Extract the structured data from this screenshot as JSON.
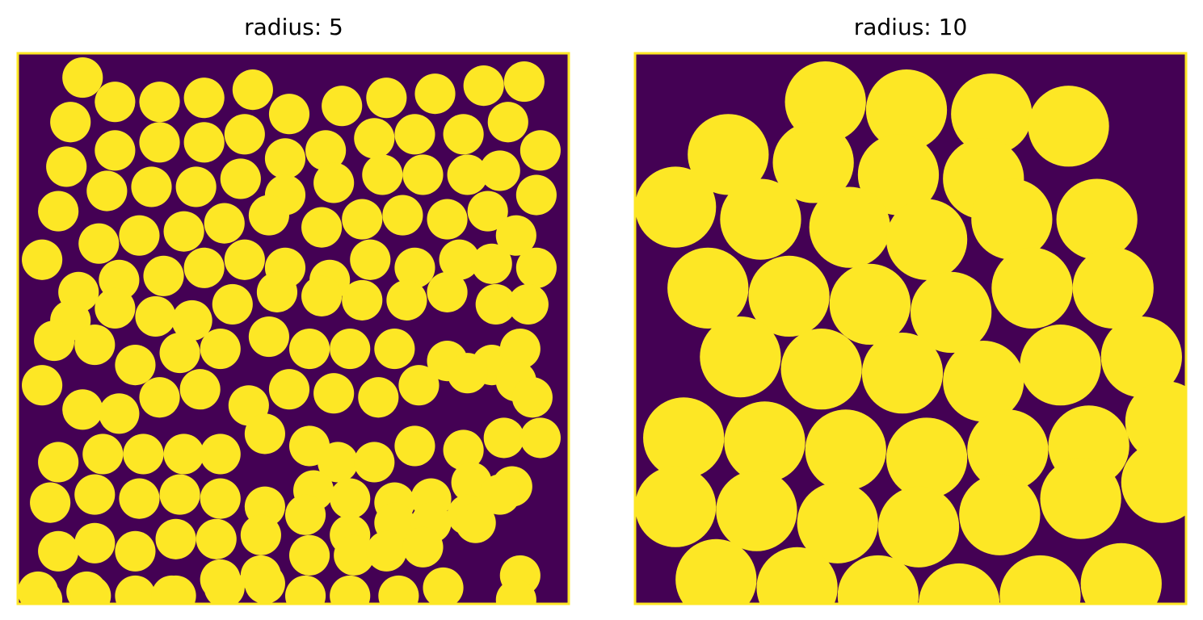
{
  "colors": {
    "background": "#440154",
    "disk": "#FDE725",
    "frame": "#FDE725"
  },
  "panels": [
    {
      "title": "radius: 5",
      "radius": 5,
      "extent": 136,
      "disks": [
        [
          16,
          6
        ],
        [
          24,
          12
        ],
        [
          35,
          12
        ],
        [
          46,
          11
        ],
        [
          58,
          9
        ],
        [
          67,
          15
        ],
        [
          80,
          13
        ],
        [
          91,
          11
        ],
        [
          103,
          10
        ],
        [
          115,
          8
        ],
        [
          125,
          7
        ],
        [
          13,
          17
        ],
        [
          24,
          24
        ],
        [
          35,
          22
        ],
        [
          46,
          22
        ],
        [
          56,
          20
        ],
        [
          66,
          26
        ],
        [
          76,
          24
        ],
        [
          88,
          21
        ],
        [
          98,
          20
        ],
        [
          110,
          20
        ],
        [
          121,
          17
        ],
        [
          129,
          24
        ],
        [
          12,
          28
        ],
        [
          22,
          34
        ],
        [
          33,
          33
        ],
        [
          44,
          33
        ],
        [
          55,
          31
        ],
        [
          66,
          35
        ],
        [
          78,
          32
        ],
        [
          90,
          30
        ],
        [
          100,
          30
        ],
        [
          111,
          30
        ],
        [
          119,
          29
        ],
        [
          128,
          35
        ],
        [
          10,
          39
        ],
        [
          20,
          47
        ],
        [
          30,
          45
        ],
        [
          41,
          44
        ],
        [
          51,
          42
        ],
        [
          62,
          40
        ],
        [
          75,
          43
        ],
        [
          85,
          41
        ],
        [
          95,
          40
        ],
        [
          106,
          41
        ],
        [
          116,
          39
        ],
        [
          123,
          45
        ],
        [
          6,
          51
        ],
        [
          15,
          59
        ],
        [
          25,
          56
        ],
        [
          36,
          55
        ],
        [
          46,
          53
        ],
        [
          56,
          51
        ],
        [
          66,
          53
        ],
        [
          77,
          56
        ],
        [
          87,
          51
        ],
        [
          98,
          53
        ],
        [
          109,
          51
        ],
        [
          117,
          52
        ],
        [
          128,
          53
        ],
        [
          13,
          66
        ],
        [
          24,
          63
        ],
        [
          34,
          65
        ],
        [
          43,
          66
        ],
        [
          53,
          62
        ],
        [
          64,
          59
        ],
        [
          75,
          60
        ],
        [
          85,
          61
        ],
        [
          96,
          61
        ],
        [
          106,
          59
        ],
        [
          118,
          62
        ],
        [
          126,
          62
        ],
        [
          9,
          71
        ],
        [
          19,
          72
        ],
        [
          29,
          77
        ],
        [
          40,
          74
        ],
        [
          50,
          73
        ],
        [
          62,
          70
        ],
        [
          72,
          73
        ],
        [
          82,
          73
        ],
        [
          93,
          73
        ],
        [
          106,
          76
        ],
        [
          117,
          77
        ],
        [
          124,
          73
        ],
        [
          6,
          82
        ],
        [
          16,
          88
        ],
        [
          25,
          89
        ],
        [
          35,
          85
        ],
        [
          45,
          83
        ],
        [
          57,
          87
        ],
        [
          67,
          83
        ],
        [
          78,
          84
        ],
        [
          89,
          85
        ],
        [
          99,
          82
        ],
        [
          111,
          79
        ],
        [
          123,
          81
        ],
        [
          127,
          85
        ],
        [
          10,
          101
        ],
        [
          21,
          99
        ],
        [
          31,
          99
        ],
        [
          41,
          99
        ],
        [
          50,
          99
        ],
        [
          61,
          94
        ],
        [
          72,
          97
        ],
        [
          79,
          101
        ],
        [
          88,
          101
        ],
        [
          98,
          97
        ],
        [
          110,
          98
        ],
        [
          120,
          95
        ],
        [
          129,
          95
        ],
        [
          8,
          111
        ],
        [
          19,
          109
        ],
        [
          30,
          110
        ],
        [
          40,
          109
        ],
        [
          50,
          110
        ],
        [
          61,
          112
        ],
        [
          73,
          108
        ],
        [
          82,
          110
        ],
        [
          93,
          111
        ],
        [
          102,
          110
        ],
        [
          112,
          106
        ],
        [
          122,
          107
        ],
        [
          10,
          123
        ],
        [
          19,
          121
        ],
        [
          29,
          123
        ],
        [
          39,
          120
        ],
        [
          49,
          120
        ],
        [
          60,
          119
        ],
        [
          71,
          114
        ],
        [
          82,
          119
        ],
        [
          93,
          116
        ],
        [
          102,
          116
        ],
        [
          111,
          114
        ],
        [
          119,
          109
        ],
        [
          5,
          133
        ],
        [
          17,
          133
        ],
        [
          29,
          134
        ],
        [
          39,
          134
        ],
        [
          50,
          130
        ],
        [
          60,
          129
        ],
        [
          72,
          124
        ],
        [
          83,
          124
        ],
        [
          91,
          123
        ],
        [
          100,
          122
        ],
        [
          113,
          116
        ],
        [
          124,
          129
        ],
        [
          6,
          135
        ],
        [
          18,
          134
        ],
        [
          38,
          134
        ],
        [
          51,
          132
        ],
        [
          61,
          131
        ],
        [
          71,
          134
        ],
        [
          82,
          134
        ],
        [
          94,
          134
        ],
        [
          105,
          132
        ],
        [
          123,
          135
        ]
      ]
    },
    {
      "title": "radius: 10",
      "radius": 10,
      "extent": 136,
      "disks": [
        [
          47,
          12
        ],
        [
          67,
          14
        ],
        [
          88,
          15
        ],
        [
          23,
          25
        ],
        [
          44,
          27
        ],
        [
          65,
          30
        ],
        [
          86,
          31
        ],
        [
          107,
          18
        ],
        [
          10,
          38
        ],
        [
          31,
          41
        ],
        [
          53,
          43
        ],
        [
          72,
          46
        ],
        [
          93,
          41
        ],
        [
          114,
          41
        ],
        [
          18,
          58
        ],
        [
          38,
          60
        ],
        [
          58,
          62
        ],
        [
          78,
          64
        ],
        [
          98,
          58
        ],
        [
          118,
          58
        ],
        [
          26,
          75
        ],
        [
          46,
          78
        ],
        [
          66,
          79
        ],
        [
          86,
          81
        ],
        [
          105,
          77
        ],
        [
          125,
          75
        ],
        [
          12,
          95
        ],
        [
          32,
          96
        ],
        [
          52,
          98
        ],
        [
          72,
          100
        ],
        [
          92,
          98
        ],
        [
          112,
          97
        ],
        [
          131,
          91
        ],
        [
          10,
          112
        ],
        [
          30,
          113
        ],
        [
          50,
          116
        ],
        [
          70,
          117
        ],
        [
          90,
          114
        ],
        [
          110,
          110
        ],
        [
          130,
          106
        ],
        [
          20,
          130
        ],
        [
          40,
          132
        ],
        [
          60,
          134
        ],
        [
          80,
          136
        ],
        [
          100,
          134
        ],
        [
          120,
          131
        ]
      ]
    }
  ]
}
